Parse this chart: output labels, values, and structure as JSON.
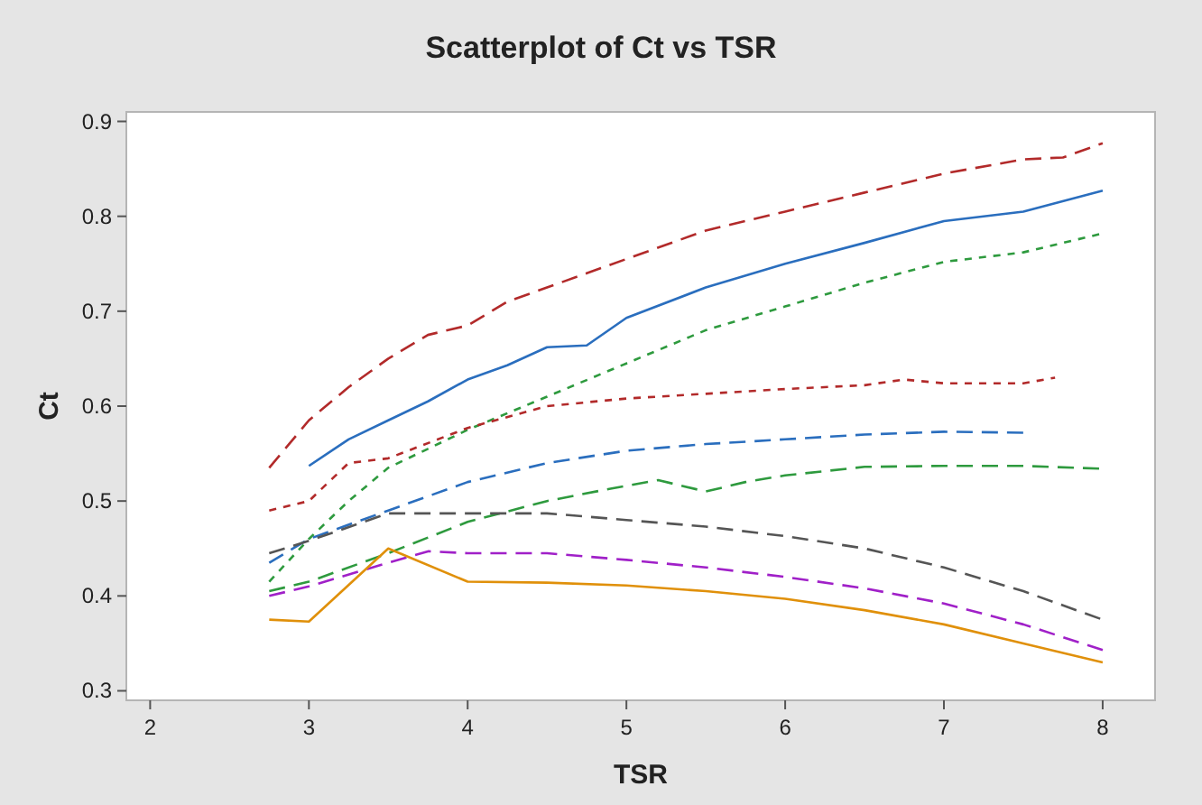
{
  "chart_data": {
    "type": "line",
    "title": "Scatterplot of Ct vs TSR",
    "xlabel": "TSR",
    "ylabel": "Ct",
    "xlim": [
      1.85,
      8.33
    ],
    "ylim": [
      0.29,
      0.91
    ],
    "xticks": [
      2,
      3,
      4,
      5,
      6,
      7,
      8
    ],
    "yticks": [
      0.3,
      0.4,
      0.5,
      0.6,
      0.7,
      0.8,
      0.9
    ],
    "series": [
      {
        "color": "#b22a2a",
        "line_style": "dashed",
        "x": [
          2.75,
          3,
          3.25,
          3.5,
          3.75,
          4,
          4.25,
          4.5,
          4.75,
          5,
          5.5,
          6,
          6.5,
          7,
          7.5,
          7.75,
          8
        ],
        "values": [
          0.535,
          0.585,
          0.62,
          0.65,
          0.675,
          0.685,
          0.71,
          0.725,
          0.74,
          0.755,
          0.785,
          0.805,
          0.825,
          0.845,
          0.86,
          0.862,
          0.877
        ]
      },
      {
        "color": "#2a6ebe",
        "line_style": "solid",
        "x": [
          3,
          3.25,
          3.5,
          3.75,
          4,
          4.25,
          4.5,
          4.75,
          5,
          5.5,
          6,
          6.5,
          7,
          7.5,
          8
        ],
        "values": [
          0.537,
          0.565,
          0.585,
          0.605,
          0.628,
          0.643,
          0.662,
          0.664,
          0.693,
          0.725,
          0.75,
          0.772,
          0.795,
          0.805,
          0.827
        ]
      },
      {
        "color": "#2e9a3e",
        "line_style": "dotted",
        "x": [
          2.75,
          3,
          3.25,
          3.5,
          3.75,
          4,
          4.5,
          5,
          5.5,
          6,
          6.5,
          7,
          7.5,
          8
        ],
        "values": [
          0.415,
          0.46,
          0.5,
          0.535,
          0.555,
          0.575,
          0.61,
          0.645,
          0.68,
          0.705,
          0.73,
          0.752,
          0.762,
          0.782
        ]
      },
      {
        "color": "#b22a2a",
        "line_style": "dotted",
        "x": [
          2.75,
          3,
          3.25,
          3.5,
          4,
          4.5,
          5,
          5.5,
          6,
          6.5,
          6.75,
          7,
          7.5,
          7.7
        ],
        "values": [
          0.49,
          0.5,
          0.54,
          0.545,
          0.577,
          0.6,
          0.608,
          0.613,
          0.618,
          0.622,
          0.628,
          0.624,
          0.624,
          0.63
        ]
      },
      {
        "color": "#2a6ebe",
        "line_style": "dashed",
        "x": [
          2.75,
          3,
          3.5,
          4,
          4.5,
          5,
          5.5,
          6,
          6.5,
          7,
          7.5
        ],
        "values": [
          0.435,
          0.46,
          0.49,
          0.52,
          0.54,
          0.553,
          0.56,
          0.565,
          0.57,
          0.573,
          0.572
        ]
      },
      {
        "color": "#2e9a3e",
        "line_style": "dashed",
        "x": [
          2.75,
          3,
          3.5,
          4,
          4.5,
          4.9,
          5.2,
          5.5,
          5.75,
          6,
          6.5,
          7,
          7.5,
          8
        ],
        "values": [
          0.405,
          0.415,
          0.445,
          0.478,
          0.5,
          0.513,
          0.522,
          0.51,
          0.52,
          0.527,
          0.536,
          0.537,
          0.537,
          0.534
        ]
      },
      {
        "color": "#555555",
        "line_style": "dashed",
        "x": [
          2.75,
          3,
          3.5,
          4,
          4.5,
          5,
          5.5,
          6,
          6.5,
          7,
          7.5,
          8
        ],
        "values": [
          0.445,
          0.458,
          0.487,
          0.487,
          0.487,
          0.48,
          0.473,
          0.463,
          0.45,
          0.43,
          0.405,
          0.375
        ]
      },
      {
        "color": "#a020c8",
        "line_style": "dashed",
        "x": [
          2.75,
          3,
          3.5,
          3.75,
          4,
          4.5,
          5,
          5.5,
          6,
          6.5,
          7,
          7.5,
          8
        ],
        "values": [
          0.4,
          0.41,
          0.435,
          0.447,
          0.445,
          0.445,
          0.438,
          0.43,
          0.42,
          0.408,
          0.392,
          0.37,
          0.343
        ]
      },
      {
        "color": "#e0900a",
        "line_style": "solid",
        "x": [
          2.75,
          3,
          3.5,
          4,
          4.5,
          5,
          5.5,
          6,
          6.5,
          7,
          7.5,
          8
        ],
        "values": [
          0.375,
          0.373,
          0.45,
          0.415,
          0.414,
          0.411,
          0.405,
          0.397,
          0.385,
          0.37,
          0.35,
          0.33
        ]
      }
    ]
  }
}
